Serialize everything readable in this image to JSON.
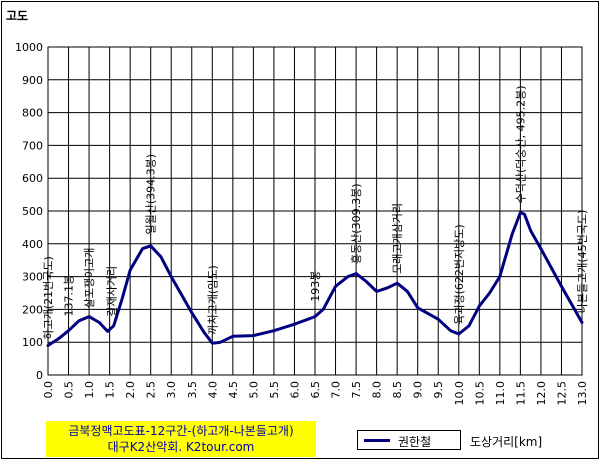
{
  "chart_data": {
    "type": "line",
    "ylabel": "고도",
    "xlabel": "도상거리[km]",
    "ylim": [
      0,
      1000
    ],
    "xlim": [
      0,
      13
    ],
    "yticks": [
      "0",
      "100",
      "200",
      "300",
      "400",
      "500",
      "600",
      "700",
      "800",
      "900",
      "1000"
    ],
    "xticks": [
      "0.0",
      "0.5",
      "1.0",
      "1.5",
      "2.0",
      "2.5",
      "3.0",
      "3.5",
      "4.0",
      "4.5",
      "5.0",
      "5.5",
      "6.0",
      "6.5",
      "7.0",
      "7.5",
      "8.0",
      "8.5",
      "9.0",
      "9.5",
      "10.0",
      "10.5",
      "11.0",
      "11.5",
      "12.0",
      "12.5",
      "13.0"
    ],
    "grid": true,
    "legend": "bottom",
    "series": [
      {
        "name": "권한철",
        "color": "#000080",
        "points": [
          [
            0.0,
            90
          ],
          [
            0.25,
            110
          ],
          [
            0.5,
            135
          ],
          [
            0.75,
            165
          ],
          [
            1.0,
            178
          ],
          [
            1.25,
            160
          ],
          [
            1.45,
            133
          ],
          [
            1.6,
            150
          ],
          [
            1.8,
            230
          ],
          [
            2.0,
            320
          ],
          [
            2.3,
            385
          ],
          [
            2.5,
            394
          ],
          [
            2.75,
            360
          ],
          [
            3.0,
            300
          ],
          [
            3.5,
            190
          ],
          [
            3.8,
            130
          ],
          [
            4.0,
            97
          ],
          [
            4.2,
            100
          ],
          [
            4.5,
            118
          ],
          [
            5.0,
            120
          ],
          [
            5.5,
            135
          ],
          [
            6.0,
            155
          ],
          [
            6.5,
            178
          ],
          [
            6.7,
            200
          ],
          [
            7.0,
            270
          ],
          [
            7.3,
            300
          ],
          [
            7.5,
            309
          ],
          [
            7.75,
            285
          ],
          [
            8.0,
            255
          ],
          [
            8.25,
            265
          ],
          [
            8.5,
            280
          ],
          [
            8.75,
            255
          ],
          [
            9.0,
            205
          ],
          [
            9.5,
            170
          ],
          [
            9.8,
            135
          ],
          [
            10.0,
            125
          ],
          [
            10.25,
            150
          ],
          [
            10.5,
            210
          ],
          [
            10.75,
            250
          ],
          [
            11.0,
            300
          ],
          [
            11.3,
            430
          ],
          [
            11.5,
            495
          ],
          [
            11.6,
            490
          ],
          [
            11.75,
            440
          ],
          [
            12.0,
            385
          ],
          [
            12.5,
            270
          ],
          [
            13.0,
            160
          ]
        ]
      }
    ],
    "annotations": [
      {
        "x": 0.0,
        "y": 90,
        "text": "하고개(21번국도)"
      },
      {
        "x": 0.5,
        "y": 160,
        "text": "137.1봉"
      },
      {
        "x": 1.0,
        "y": 185,
        "text": "살포쟁이고개"
      },
      {
        "x": 1.55,
        "y": 160,
        "text": "갈재사거리"
      },
      {
        "x": 2.5,
        "y": 410,
        "text": "일월산(394.3봉)"
      },
      {
        "x": 4.0,
        "y": 105,
        "text": "까치고개(임도)"
      },
      {
        "x": 6.5,
        "y": 205,
        "text": "193봉"
      },
      {
        "x": 7.5,
        "y": 320,
        "text": "홍동산(309.3봉)"
      },
      {
        "x": 8.5,
        "y": 290,
        "text": "모래고개삼거리"
      },
      {
        "x": 10.0,
        "y": 135,
        "text": "육괴정(622번지방도)"
      },
      {
        "x": 11.5,
        "y": 505,
        "text": "수덕산(덕숭산, 495.2봉)"
      },
      {
        "x": 13.0,
        "y": 170,
        "text": "나본들고개(45번국도)"
      }
    ]
  },
  "title_box": {
    "line1": "금북정맥고도표-12구간-(하고개-나본들고개)",
    "line2": "대구K2산악회. K2tour.com"
  }
}
